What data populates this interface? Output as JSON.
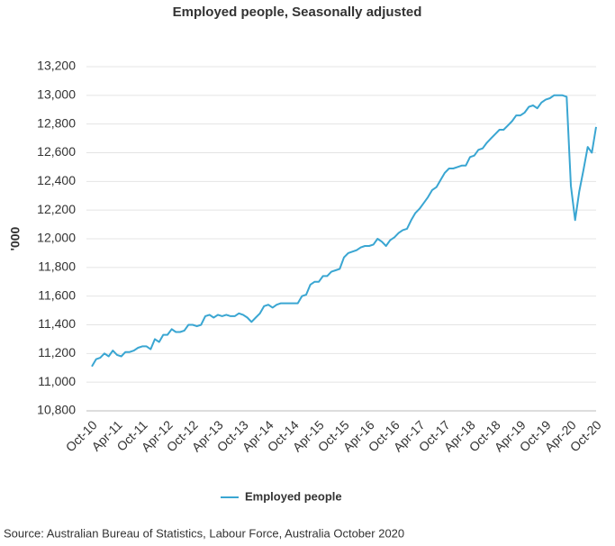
{
  "chart_data": {
    "type": "line",
    "title": "Employed people, Seasonally adjusted",
    "y_label": "'000",
    "source": "Source: Australian Bureau of Statistics, Labour Force, Australia October 2020",
    "categories": [
      "Oct-10",
      null,
      null,
      null,
      null,
      null,
      "Apr-11",
      null,
      null,
      null,
      null,
      null,
      "Oct-11",
      null,
      null,
      null,
      null,
      null,
      "Apr-12",
      null,
      null,
      null,
      null,
      null,
      "Oct-12",
      null,
      null,
      null,
      null,
      null,
      "Apr-13",
      null,
      null,
      null,
      null,
      null,
      "Oct-13",
      null,
      null,
      null,
      null,
      null,
      "Apr-14",
      null,
      null,
      null,
      null,
      null,
      "Oct-14",
      null,
      null,
      null,
      null,
      null,
      "Apr-15",
      null,
      null,
      null,
      null,
      null,
      "Oct-15",
      null,
      null,
      null,
      null,
      null,
      "Apr-16",
      null,
      null,
      null,
      null,
      null,
      "Oct-16",
      null,
      null,
      null,
      null,
      null,
      "Apr-17",
      null,
      null,
      null,
      null,
      null,
      "Oct-17",
      null,
      null,
      null,
      null,
      null,
      "Apr-18",
      null,
      null,
      null,
      null,
      null,
      "Oct-18",
      null,
      null,
      null,
      null,
      null,
      "Apr-19",
      null,
      null,
      null,
      null,
      null,
      "Oct-19",
      null,
      null,
      null,
      null,
      null,
      "Apr-20",
      null,
      null,
      null,
      null,
      null,
      "Oct-20"
    ],
    "series": [
      {
        "name": "Employed people",
        "color": "#3aa6d2",
        "values": [
          11110,
          11160,
          11170,
          11200,
          11180,
          11220,
          11190,
          11180,
          11210,
          11210,
          11220,
          11240,
          11250,
          11250,
          11230,
          11300,
          11280,
          11330,
          11330,
          11370,
          11350,
          11350,
          11360,
          11400,
          11400,
          11390,
          11400,
          11460,
          11470,
          11450,
          11470,
          11460,
          11470,
          11460,
          11460,
          11480,
          11470,
          11450,
          11420,
          11450,
          11480,
          11530,
          11540,
          11520,
          11540,
          11550,
          11550,
          11550,
          11550,
          11550,
          11600,
          11610,
          11680,
          11700,
          11700,
          11740,
          11740,
          11770,
          11780,
          11790,
          11870,
          11900,
          11910,
          11920,
          11940,
          11950,
          11950,
          11960,
          12000,
          11980,
          11950,
          11990,
          12010,
          12040,
          12060,
          12070,
          12130,
          12180,
          12210,
          12250,
          12290,
          12340,
          12360,
          12410,
          12460,
          12490,
          12490,
          12500,
          12510,
          12510,
          12570,
          12580,
          12620,
          12630,
          12670,
          12700,
          12730,
          12760,
          12760,
          12790,
          12820,
          12860,
          12860,
          12880,
          12920,
          12930,
          12910,
          12950,
          12970,
          12980,
          13000,
          13000,
          13000,
          12990,
          12370,
          12130,
          12330,
          12480,
          12640,
          12600,
          12780
        ]
      }
    ],
    "ylim": [
      10800,
      13200
    ],
    "yticks": [
      {
        "value": 10800,
        "label": "10,800"
      },
      {
        "value": 11000,
        "label": "11,000"
      },
      {
        "value": 11200,
        "label": "11,200"
      },
      {
        "value": 11400,
        "label": "11,400"
      },
      {
        "value": 11600,
        "label": "11,600"
      },
      {
        "value": 11800,
        "label": "11,800"
      },
      {
        "value": 12000,
        "label": "12,000"
      },
      {
        "value": 12200,
        "label": "12,200"
      },
      {
        "value": 12400,
        "label": "12,400"
      },
      {
        "value": 12600,
        "label": "12,600"
      },
      {
        "value": 12800,
        "label": "12,800"
      },
      {
        "value": 13000,
        "label": "13,000"
      },
      {
        "value": 13200,
        "label": "13,200"
      }
    ],
    "grid": true,
    "legend": "bottom"
  }
}
